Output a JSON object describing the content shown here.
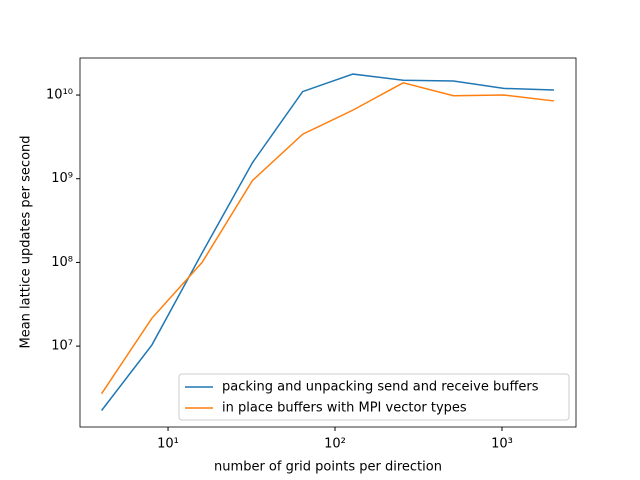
{
  "chart_data": {
    "type": "line",
    "xlabel": "number of grid points per direction",
    "ylabel": "Mean lattice updates per second",
    "x": [
      4,
      8,
      16,
      32,
      64,
      128,
      256,
      512,
      1024,
      2048
    ],
    "series": [
      {
        "name": "packing and unpacking send and receive buffers",
        "color": "#1f77b4",
        "values": [
          1700000,
          10300000,
          130000000,
          1550000000,
          11000000000,
          17800000000,
          15000000000,
          14700000000,
          12000000000,
          11500000000
        ]
      },
      {
        "name": "in place buffers with MPI vector types",
        "color": "#ff7f0e",
        "values": [
          2700000,
          21500000,
          100000000,
          950000000,
          3400000000,
          6600000000,
          14000000000,
          9800000000,
          10000000000,
          8500000000
        ]
      }
    ],
    "xscale": "log",
    "yscale": "log",
    "xlim": [
      2.97,
      2775
    ],
    "ylim": [
      1080000,
      27700000000
    ],
    "xticks": [
      {
        "value": 10,
        "label": "10¹"
      },
      {
        "value": 100,
        "label": "10²"
      },
      {
        "value": 1000,
        "label": "10³"
      }
    ],
    "yticks": [
      {
        "value": 10000000,
        "label": "10⁷"
      },
      {
        "value": 100000000,
        "label": "10⁸"
      },
      {
        "value": 1000000000,
        "label": "10⁹"
      },
      {
        "value": 10000000000,
        "label": "10¹⁰"
      }
    ],
    "legend": "lower right"
  }
}
